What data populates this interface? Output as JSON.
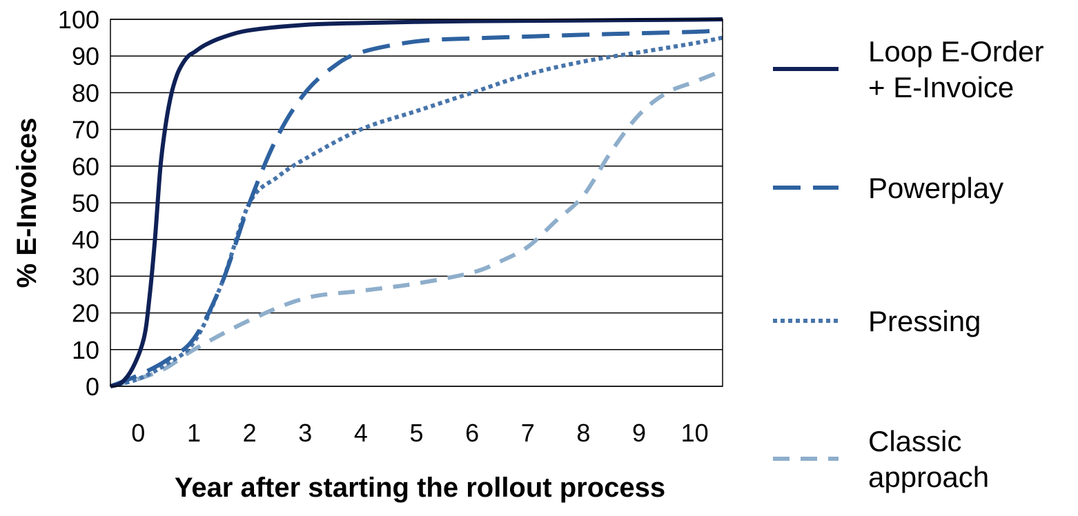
{
  "chart_data": {
    "type": "line",
    "title": "",
    "xlabel": "Year after starting the rollout process",
    "ylabel": "% E-Invoices",
    "xlim": [
      -0.5,
      10.5
    ],
    "ylim": [
      0,
      100
    ],
    "x_ticks": [
      "0",
      "1",
      "2",
      "3",
      "4",
      "5",
      "6",
      "7",
      "8",
      "9",
      "10"
    ],
    "y_ticks": [
      "0",
      "10",
      "20",
      "30",
      "40",
      "50",
      "60",
      "70",
      "80",
      "90",
      "100"
    ],
    "grid": "horizontal",
    "legend": "right",
    "series": [
      {
        "name": "Loop E-Order + E-Invoice",
        "name_lines": [
          "Loop E-Order",
          "+ E-Invoice"
        ],
        "color": "#0f2156",
        "style": "solid",
        "x": [
          -0.5,
          -0.3,
          -0.1,
          0.1,
          0.2,
          0.3,
          0.4,
          0.5,
          0.6,
          0.7,
          0.8,
          0.9,
          1.0,
          1.2,
          1.5,
          2.0,
          3.0,
          4.0,
          5.0,
          6.0,
          7.0,
          8.0,
          9.0,
          10.0,
          10.5
        ],
        "y": [
          0,
          1,
          5,
          13,
          24,
          40,
          60,
          72,
          80,
          85,
          88,
          90,
          91,
          93,
          95,
          97,
          98.5,
          99,
          99.3,
          99.5,
          99.6,
          99.7,
          99.8,
          99.9,
          100
        ]
      },
      {
        "name": "Powerplay",
        "name_lines": [
          "Powerplay"
        ],
        "color": "#2e62a0",
        "style": "long-dash",
        "x": [
          -0.5,
          0,
          0.5,
          1.0,
          1.5,
          2.0,
          2.5,
          3.0,
          3.5,
          4.0,
          5.0,
          6.0,
          7.0,
          8.0,
          9.0,
          10.0,
          10.5
        ],
        "y": [
          0,
          3,
          7,
          13,
          28,
          50,
          68,
          80,
          87,
          91,
          94,
          94.8,
          95.3,
          95.8,
          96.2,
          96.6,
          97
        ]
      },
      {
        "name": "Pressing",
        "name_lines": [
          "Pressing"
        ],
        "color": "#4774aa",
        "style": "dotted",
        "x": [
          -0.5,
          0,
          0.5,
          1.0,
          1.5,
          2.0,
          2.5,
          3.0,
          4.0,
          5.0,
          6.0,
          7.0,
          8.0,
          9.0,
          10.0,
          10.5
        ],
        "y": [
          0,
          2,
          6,
          12,
          28,
          50,
          57,
          62,
          70,
          75,
          80,
          85,
          88.5,
          91,
          93.5,
          95
        ]
      },
      {
        "name": "Classic approach",
        "name_lines": [
          "Classic",
          "approach"
        ],
        "color": "#8eaecb",
        "style": "dashed",
        "x": [
          -0.5,
          0,
          0.5,
          1.0,
          2.0,
          3.0,
          4.0,
          5.0,
          6.0,
          6.5,
          7.0,
          7.5,
          8.0,
          8.5,
          9.0,
          9.5,
          10.0,
          10.5
        ],
        "y": [
          0,
          2,
          5,
          10,
          18,
          24,
          26,
          28,
          31,
          34,
          38,
          45,
          52,
          64,
          74,
          80,
          83,
          86
        ]
      }
    ]
  }
}
